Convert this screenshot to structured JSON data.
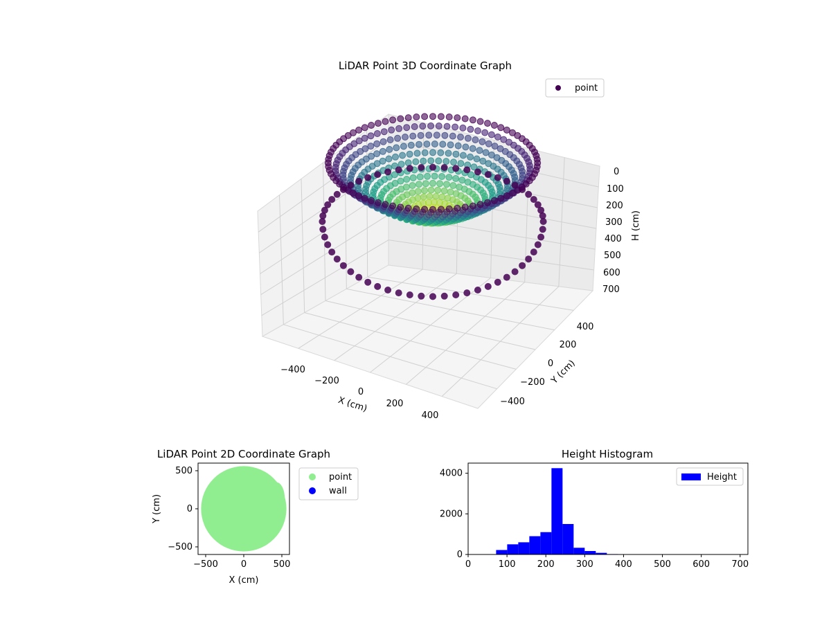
{
  "figure": {
    "background": "#ffffff"
  },
  "chart_data": [
    {
      "type": "scatter3d",
      "title": "LiDAR Point 3D Coordinate Graph",
      "xlabel": "X (cm)",
      "ylabel": "Y (cm)",
      "zlabel": "H (cm)",
      "xlim": [
        -600,
        600
      ],
      "ylim": [
        -600,
        600
      ],
      "zlim": [
        700,
        0
      ],
      "z_axis_inverted": true,
      "xticks": [
        "−400",
        "−200",
        "0",
        "200",
        "400"
      ],
      "yticks": [
        "−400",
        "−200",
        "0",
        "200",
        "400"
      ],
      "zticks": [
        "0",
        "100",
        "200",
        "300",
        "400",
        "500",
        "600",
        "700"
      ],
      "colormap": "viridis",
      "legend": [
        "point"
      ],
      "legend_color": "#440154",
      "legend_position": "top-right",
      "grid": true,
      "shape": "bowl",
      "rim_height_cm": 700,
      "center_height_cm": 230,
      "radius_cm": 560
    },
    {
      "type": "scatter",
      "title": "LiDAR Point 2D Coordinate Graph",
      "xlabel": "X (cm)",
      "ylabel": "Y (cm)",
      "xlim": [
        -600,
        600
      ],
      "ylim": [
        -600,
        600
      ],
      "xticks": [
        "−500",
        "0",
        "500"
      ],
      "yticks": [
        "−500",
        "0",
        "500"
      ],
      "series": [
        {
          "name": "point",
          "color": "#90ee90",
          "shape": "filled-disk",
          "radius_cm": 560
        },
        {
          "name": "wall",
          "color": "#0000ff",
          "values": []
        }
      ],
      "legend_position": "outside-right"
    },
    {
      "type": "bar",
      "title": "Height Histogram",
      "xlim": [
        0,
        720
      ],
      "ylim": [
        0,
        4500
      ],
      "xticks": [
        "0",
        "100",
        "200",
        "300",
        "400",
        "500",
        "600",
        "700"
      ],
      "yticks": [
        "0",
        "2000",
        "4000"
      ],
      "bin_width": 28.5,
      "bins_start": [
        72,
        100.5,
        129,
        157.5,
        186,
        214.5,
        243,
        271.5,
        300,
        328.5,
        357
      ],
      "values": [
        220,
        500,
        600,
        900,
        1100,
        4250,
        1500,
        330,
        170,
        80,
        20
      ],
      "series": [
        {
          "name": "Height",
          "color": "#0000ff"
        }
      ],
      "legend_position": "top-right"
    }
  ]
}
